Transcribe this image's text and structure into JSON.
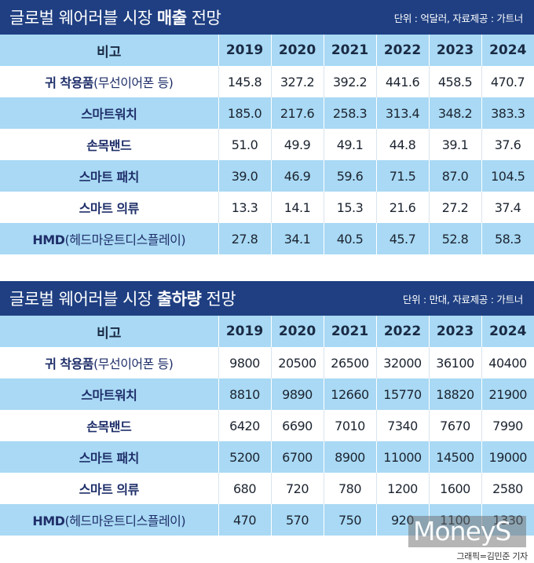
{
  "sales": {
    "title_plain": "글로벌 웨어러블 시장 ",
    "title_bold": "매출",
    "title_suffix": " 전망",
    "unit": "단위 : 억달러, 자료제공 : 가트너",
    "header": [
      "비고",
      "2019",
      "2020",
      "2021",
      "2022",
      "2023",
      "2024"
    ],
    "rows": [
      {
        "label_bold": "귀 착용품",
        "label_sub": "(무선이어폰 등)",
        "values": [
          "145.8",
          "327.2",
          "392.2",
          "441.6",
          "458.5",
          "470.7"
        ]
      },
      {
        "label_bold": "스마트워치",
        "label_sub": "",
        "values": [
          "185.0",
          "217.6",
          "258.3",
          "313.4",
          "348.2",
          "383.3"
        ]
      },
      {
        "label_bold": "손목밴드",
        "label_sub": "",
        "values": [
          "51.0",
          "49.9",
          "49.1",
          "44.8",
          "39.1",
          "37.6"
        ]
      },
      {
        "label_bold": "스마트 패치",
        "label_sub": "",
        "values": [
          "39.0",
          "46.9",
          "59.6",
          "71.5",
          "87.0",
          "104.5"
        ]
      },
      {
        "label_bold": "스마트 의류",
        "label_sub": "",
        "values": [
          "13.3",
          "14.1",
          "15.3",
          "21.6",
          "27.2",
          "37.4"
        ]
      },
      {
        "label_bold": "HMD",
        "label_sub": "(헤드마운트디스플레이)",
        "values": [
          "27.8",
          "34.1",
          "40.5",
          "45.7",
          "52.8",
          "58.3"
        ]
      }
    ]
  },
  "shipments": {
    "title_plain": "글로벌 웨어러블 시장 ",
    "title_bold": "출하량",
    "title_suffix": " 전망",
    "unit": "단위 : 만대, 자료제공 : 가트너",
    "header": [
      "비고",
      "2019",
      "2020",
      "2021",
      "2022",
      "2023",
      "2024"
    ],
    "rows": [
      {
        "label_bold": "귀 착용품",
        "label_sub": "(무선이어폰 등)",
        "values": [
          "9800",
          "20500",
          "26500",
          "32000",
          "36100",
          "40400"
        ]
      },
      {
        "label_bold": "스마트워치",
        "label_sub": "",
        "values": [
          "8810",
          "9890",
          "12660",
          "15770",
          "18820",
          "21900"
        ]
      },
      {
        "label_bold": "손목밴드",
        "label_sub": "",
        "values": [
          "6420",
          "6690",
          "7010",
          "7340",
          "7670",
          "7990"
        ]
      },
      {
        "label_bold": "스마트 패치",
        "label_sub": "",
        "values": [
          "5200",
          "6700",
          "8900",
          "11000",
          "14500",
          "19000"
        ]
      },
      {
        "label_bold": "스마트 의류",
        "label_sub": "",
        "values": [
          "680",
          "720",
          "780",
          "1200",
          "1600",
          "2580"
        ]
      },
      {
        "label_bold": "HMD",
        "label_sub": "(헤드마운트디스플레이)",
        "values": [
          "470",
          "570",
          "750",
          "920",
          "1100",
          "1330"
        ]
      }
    ]
  },
  "logo": "MoneyS",
  "credit": "그래픽=김민준 기자"
}
